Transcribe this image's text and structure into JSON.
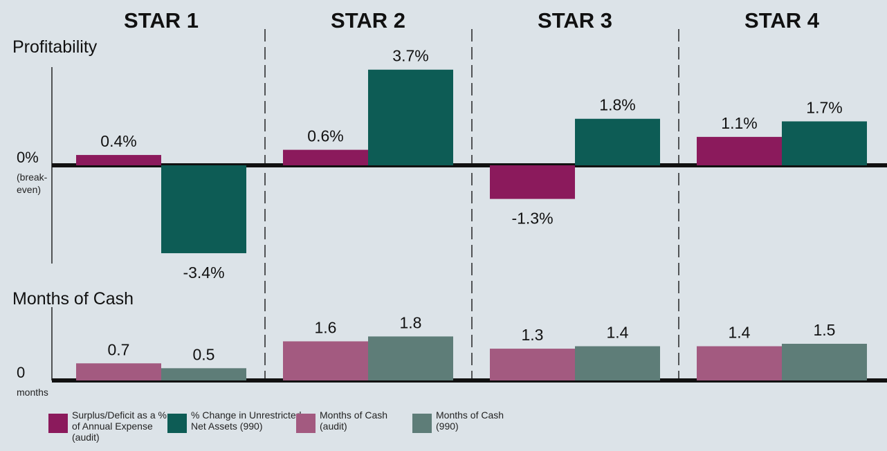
{
  "chart_data": [
    {
      "type": "bar",
      "title": "Profitability",
      "categories": [
        "STAR 1",
        "STAR 2",
        "STAR 3",
        "STAR 4"
      ],
      "series": [
        {
          "name": "Surplus/Deficit as a % of Annual Expense (audit)",
          "color": "#8b1a5c",
          "values": [
            0.4,
            0.6,
            -1.3,
            1.1
          ],
          "value_labels": [
            "0.4%",
            "0.6%",
            "-1.3%",
            "1.1%"
          ]
        },
        {
          "name": "% Change in Unrestricted Net Assets (990)",
          "color": "#0d5c55",
          "values": [
            -3.4,
            3.7,
            1.8,
            1.7
          ],
          "value_labels": [
            "-3.4%",
            "3.7%",
            "1.8%",
            "1.7%"
          ]
        }
      ],
      "ylim": [
        -3.8,
        3.8
      ],
      "yticks": [
        {
          "value": 0,
          "label": "0%"
        }
      ],
      "baseline_note": "(break-even)"
    },
    {
      "type": "bar",
      "title": "Months of Cash",
      "series": [
        {
          "name": "Months of Cash (audit)",
          "color": "#a35a80",
          "values": [
            0.7,
            1.6,
            1.3,
            1.4
          ]
        },
        {
          "name": "Months of Cash (990)",
          "color": "#5e7d78",
          "values": [
            0.5,
            1.8,
            1.4,
            1.5
          ]
        }
      ],
      "ylim": [
        0,
        3
      ],
      "yticks": [
        0
      ],
      "baseline_note": "months"
    }
  ]
}
